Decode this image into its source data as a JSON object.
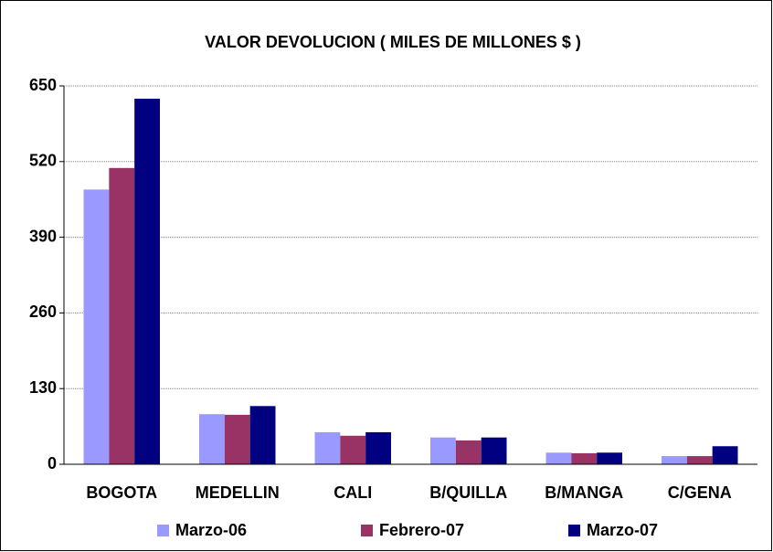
{
  "chart_data": {
    "type": "bar",
    "title": "VALOR DEVOLUCION ( MILES DE MILLONES $ )",
    "categories": [
      "BOGOTA",
      "MEDELLIN",
      "CALI",
      "B/QUILLA",
      "B/MANGA",
      "C/GENA"
    ],
    "series": [
      {
        "name": "Marzo-06",
        "color": "#9999ff",
        "values": [
          472,
          86,
          55,
          46,
          20,
          14
        ]
      },
      {
        "name": "Febrero-07",
        "color": "#993366",
        "values": [
          509,
          85,
          49,
          41,
          19,
          14
        ]
      },
      {
        "name": "Marzo-07",
        "color": "#000080",
        "values": [
          628,
          100,
          55,
          46,
          20,
          31
        ]
      }
    ],
    "ylim": [
      0,
      650
    ],
    "yticks": [
      0,
      130,
      260,
      390,
      520,
      650
    ],
    "grid": true,
    "legend": "bottom"
  }
}
